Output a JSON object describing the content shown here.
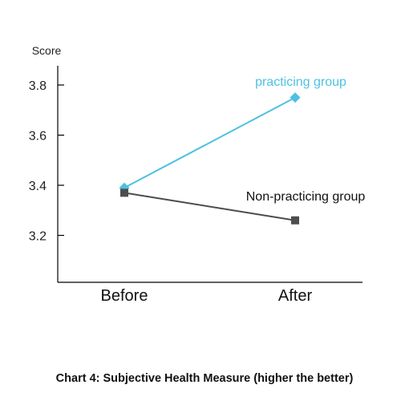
{
  "chart_data": {
    "type": "line",
    "title": "Chart 4: Subjective Health Measure (higher the better)",
    "ylabel": "Score",
    "xlabel": "",
    "categories": [
      "Before",
      "After"
    ],
    "ylim": [
      3.0,
      3.9
    ],
    "yticks": [
      "3.2",
      "3.4",
      "3.6",
      "3.8"
    ],
    "grid": false,
    "legend": "inline labels",
    "series": [
      {
        "name": "practicing group",
        "values": [
          3.39,
          3.75
        ],
        "color": "#4fc1e0",
        "marker": "diamond"
      },
      {
        "name": "Non-practicing group",
        "values": [
          3.37,
          3.26
        ],
        "color": "#4d4d4d",
        "marker": "square"
      }
    ]
  }
}
